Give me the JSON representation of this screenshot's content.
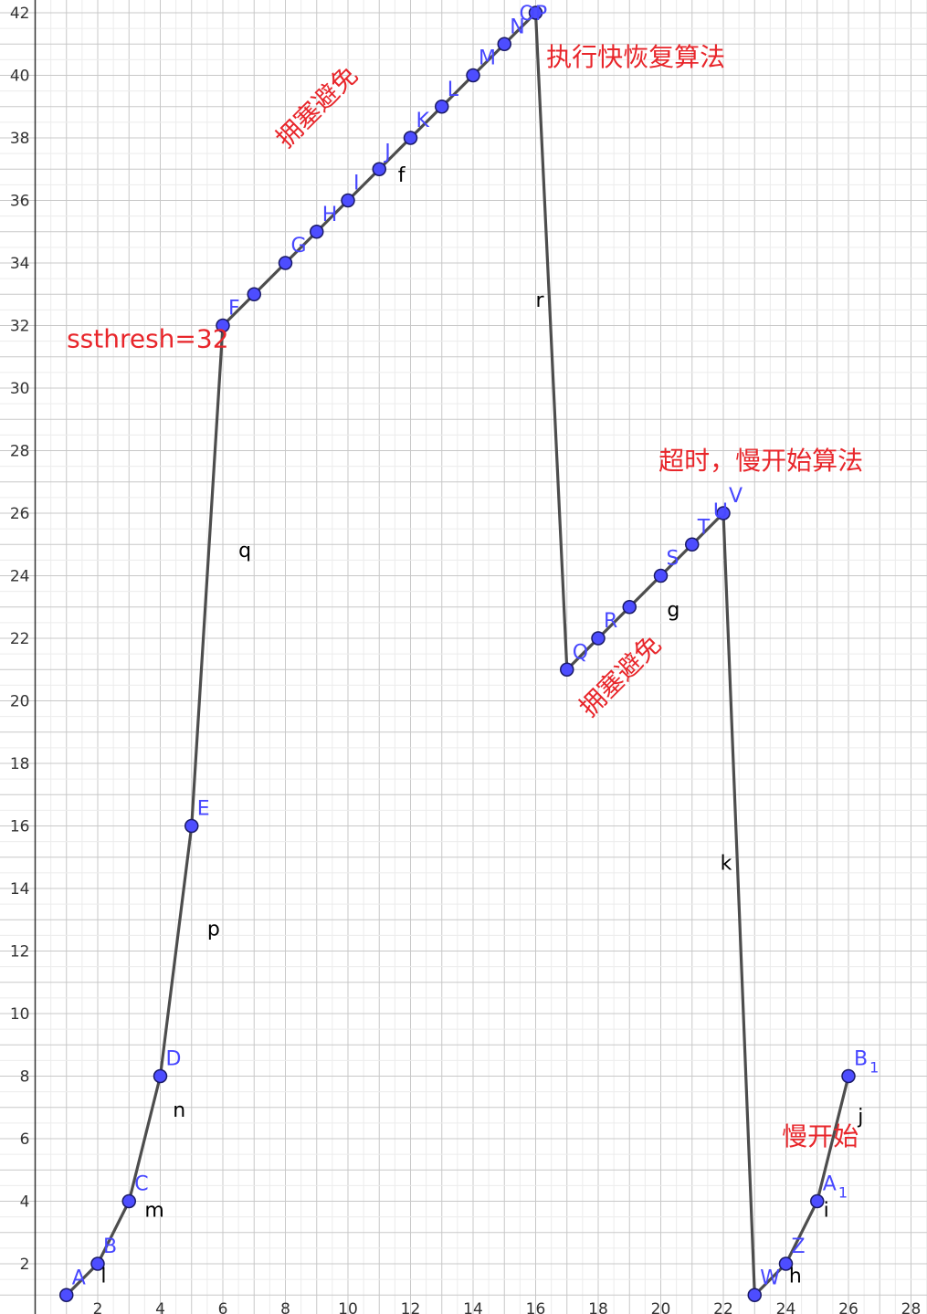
{
  "chart_data": {
    "type": "line",
    "x_ticks": [
      2,
      4,
      6,
      8,
      10,
      12,
      14,
      16,
      18,
      20,
      22,
      24,
      26,
      28
    ],
    "y_ticks": [
      2,
      4,
      6,
      8,
      10,
      12,
      14,
      16,
      18,
      20,
      22,
      24,
      26,
      28,
      30,
      32,
      34,
      36,
      38,
      40,
      42
    ],
    "xlim": [
      0.9,
      29.2
    ],
    "ylim": [
      0.6,
      42.4
    ],
    "grid": true,
    "colors": {
      "line": "#4d4d4d",
      "point": "#4d4dff",
      "point_stroke": "#1a1a66",
      "label": "#4747ff",
      "annotation": "#e8262b",
      "grid_major": "#c8c8c8",
      "grid_minor": "#ececec"
    },
    "points": [
      {
        "label": "A",
        "x": 1,
        "y": 1
      },
      {
        "label": "B",
        "x": 2,
        "y": 2
      },
      {
        "label": "C",
        "x": 3,
        "y": 4
      },
      {
        "label": "D",
        "x": 4,
        "y": 8
      },
      {
        "label": "E",
        "x": 5,
        "y": 16
      },
      {
        "label": "F",
        "x": 6,
        "y": 32
      },
      {
        "label": "",
        "x": 7,
        "y": 33
      },
      {
        "label": "G",
        "x": 8,
        "y": 34
      },
      {
        "label": "H",
        "x": 9,
        "y": 35
      },
      {
        "label": "I",
        "x": 10,
        "y": 36
      },
      {
        "label": "J",
        "x": 11,
        "y": 37
      },
      {
        "label": "K",
        "x": 12,
        "y": 38
      },
      {
        "label": "L",
        "x": 13,
        "y": 39
      },
      {
        "label": "M",
        "x": 14,
        "y": 40
      },
      {
        "label": "N",
        "x": 15,
        "y": 41
      },
      {
        "label": "OP",
        "x": 16,
        "y": 42
      },
      {
        "label": "Q",
        "x": 17,
        "y": 21
      },
      {
        "label": "R",
        "x": 18,
        "y": 22
      },
      {
        "label": "",
        "x": 19,
        "y": 23
      },
      {
        "label": "S",
        "x": 20,
        "y": 24
      },
      {
        "label": "T",
        "x": 21,
        "y": 25
      },
      {
        "label": "U",
        "x": 21.5,
        "y": 25.5,
        "only_label": true
      },
      {
        "label": "V",
        "x": 22,
        "y": 26
      },
      {
        "label": "W",
        "x": 23,
        "y": 1
      },
      {
        "label": "Z",
        "x": 24,
        "y": 2
      },
      {
        "label": "A",
        "sub": "1",
        "x": 25,
        "y": 4
      },
      {
        "label": "B",
        "sub": "1",
        "x": 26,
        "y": 8
      }
    ],
    "segment_labels": [
      {
        "label": "l",
        "x": 2.1,
        "y": 1.4
      },
      {
        "label": "m",
        "x": 3.5,
        "y": 3.5
      },
      {
        "label": "n",
        "x": 4.4,
        "y": 6.7
      },
      {
        "label": "p",
        "x": 5.5,
        "y": 12.5
      },
      {
        "label": "q",
        "x": 6.5,
        "y": 24.6
      },
      {
        "label": "f",
        "x": 11.6,
        "y": 36.6
      },
      {
        "label": "r",
        "x": 16,
        "y": 32.6
      },
      {
        "label": "g",
        "x": 20.2,
        "y": 22.7
      },
      {
        "label": "k",
        "x": 21.9,
        "y": 14.6
      },
      {
        "label": "h",
        "x": 24.1,
        "y": 1.4
      },
      {
        "label": "i",
        "x": 25.2,
        "y": 3.5
      },
      {
        "label": "j",
        "x": 26.3,
        "y": 6.5
      }
    ],
    "annotations": [
      {
        "text": "ssthresh=32",
        "x": 3.6,
        "y": 31.3,
        "rotate": 0
      },
      {
        "text": "执行快恢复算法",
        "x": 19.2,
        "y": 40.3,
        "rotate": 0
      },
      {
        "text": "拥塞避免",
        "x": 9.2,
        "y": 38.8,
        "rotate": -45
      },
      {
        "text": "拥塞避免",
        "x": 18.9,
        "y": 20.6,
        "rotate": -45
      },
      {
        "text": "超时，慢开始算法",
        "x": 23.2,
        "y": 27.4,
        "rotate": 0
      },
      {
        "text": "慢开始",
        "x": 25.1,
        "y": 5.8,
        "rotate": 0
      }
    ]
  }
}
